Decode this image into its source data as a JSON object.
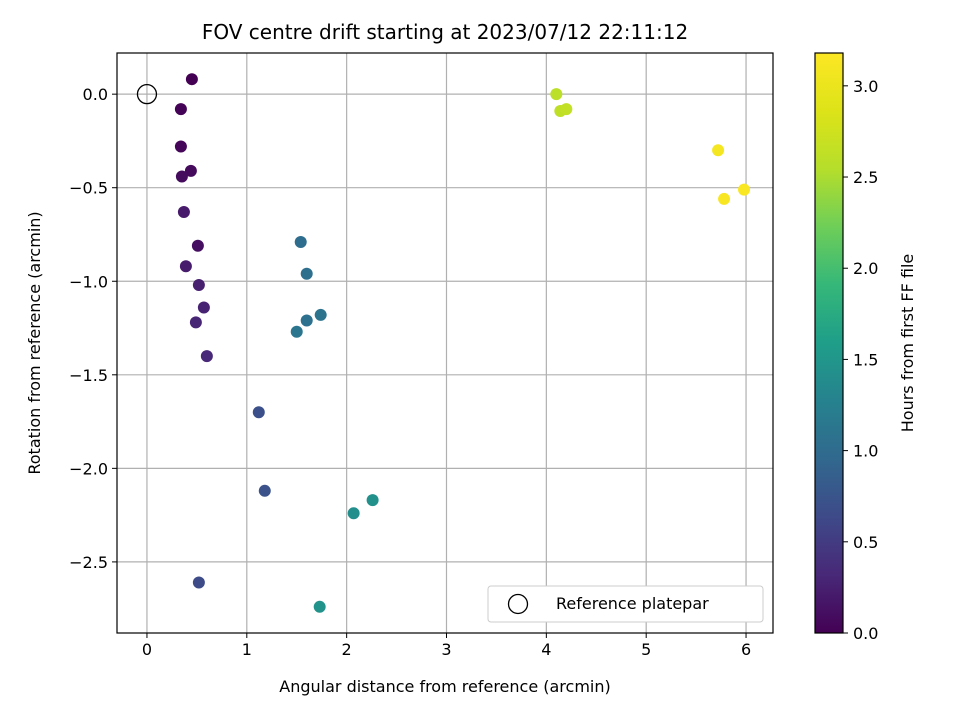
{
  "chart_data": {
    "type": "scatter",
    "title": "FOV centre drift starting at 2023/07/12 22:11:12",
    "xlabel": "Angular distance from reference (arcmin)",
    "ylabel": "Rotation from reference (arcmin)",
    "xlim": [
      -0.3,
      6.27
    ],
    "ylim": [
      -2.88,
      0.22
    ],
    "xticks": [
      0,
      1,
      2,
      3,
      4,
      5,
      6
    ],
    "xtick_labels": [
      "0",
      "1",
      "2",
      "3",
      "4",
      "5",
      "6"
    ],
    "yticks": [
      0.0,
      -0.5,
      -1.0,
      -1.5,
      -2.0,
      -2.5
    ],
    "ytick_labels": [
      "0.0",
      "−0.5",
      "−1.0",
      "−1.5",
      "−2.0",
      "−2.5"
    ],
    "grid": true,
    "legend": {
      "placement": "lower-right",
      "entries": [
        "Reference platepar"
      ]
    },
    "reference_point": {
      "x": 0.0,
      "y": 0.0,
      "marker": "open-circle"
    },
    "colorbar": {
      "label": "Hours from first FF file",
      "range": [
        0.0,
        3.18
      ],
      "ticks": [
        0.0,
        0.5,
        1.0,
        1.5,
        2.0,
        2.5,
        3.0
      ],
      "tick_labels": [
        "0.0",
        "0.5",
        "1.0",
        "1.5",
        "2.0",
        "2.5",
        "3.0"
      ],
      "colormap": "viridis"
    },
    "points": [
      {
        "x": 0.45,
        "y": 0.08,
        "c": 0.0
      },
      {
        "x": 0.34,
        "y": -0.08,
        "c": 0.02
      },
      {
        "x": 0.34,
        "y": -0.28,
        "c": 0.04
      },
      {
        "x": 0.44,
        "y": -0.41,
        "c": 0.07
      },
      {
        "x": 0.35,
        "y": -0.44,
        "c": 0.09
      },
      {
        "x": 0.51,
        "y": -0.81,
        "c": 0.11
      },
      {
        "x": 0.37,
        "y": -0.63,
        "c": 0.2
      },
      {
        "x": 0.39,
        "y": -0.92,
        "c": 0.22
      },
      {
        "x": 0.52,
        "y": -1.02,
        "c": 0.25
      },
      {
        "x": 0.57,
        "y": -1.14,
        "c": 0.27
      },
      {
        "x": 0.49,
        "y": -1.22,
        "c": 0.3
      },
      {
        "x": 0.6,
        "y": -1.4,
        "c": 0.32
      },
      {
        "x": 0.52,
        "y": -2.61,
        "c": 0.65
      },
      {
        "x": 1.12,
        "y": -1.7,
        "c": 0.7
      },
      {
        "x": 1.18,
        "y": -2.12,
        "c": 0.72
      },
      {
        "x": 1.54,
        "y": -0.79,
        "c": 1.02
      },
      {
        "x": 1.6,
        "y": -0.96,
        "c": 1.04
      },
      {
        "x": 1.6,
        "y": -1.21,
        "c": 1.07
      },
      {
        "x": 1.74,
        "y": -1.18,
        "c": 1.09
      },
      {
        "x": 1.5,
        "y": -1.27,
        "c": 1.12
      },
      {
        "x": 2.07,
        "y": -2.24,
        "c": 1.42
      },
      {
        "x": 2.26,
        "y": -2.17,
        "c": 1.44
      },
      {
        "x": 1.73,
        "y": -2.74,
        "c": 1.47
      },
      {
        "x": 4.1,
        "y": 0.0,
        "c": 2.6
      },
      {
        "x": 4.14,
        "y": -0.09,
        "c": 2.62
      },
      {
        "x": 4.2,
        "y": -0.08,
        "c": 2.65
      },
      {
        "x": 5.72,
        "y": -0.3,
        "c": 3.1
      },
      {
        "x": 5.78,
        "y": -0.56,
        "c": 3.13
      },
      {
        "x": 5.98,
        "y": -0.51,
        "c": 3.15
      }
    ]
  }
}
